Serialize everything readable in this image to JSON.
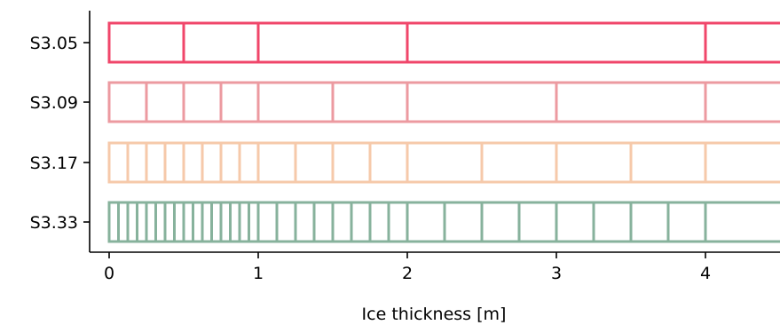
{
  "chart_data": {
    "type": "bar",
    "title": "",
    "xlabel": "Ice thickness [m]",
    "ylabel": "",
    "xlim": [
      -0.13,
      4.5
    ],
    "xticks": [
      0,
      1,
      2,
      3,
      4
    ],
    "xtick_labels": [
      "0",
      "1",
      "2",
      "3",
      "4"
    ],
    "grid": false,
    "legend": "none",
    "categories": [
      "S3.05",
      "S3.09",
      "S3.17",
      "S3.33"
    ],
    "series": [
      {
        "category": "S3.05",
        "color": "#f0466a",
        "boundaries": [
          0,
          0.5,
          1,
          2,
          4
        ]
      },
      {
        "category": "S3.09",
        "color": "#ec9aa0",
        "boundaries": [
          0,
          0.25,
          0.5,
          0.75,
          1,
          1.5,
          2,
          3,
          4
        ]
      },
      {
        "category": "S3.17",
        "color": "#f6c9aa",
        "boundaries": [
          0,
          0.125,
          0.25,
          0.375,
          0.5,
          0.625,
          0.75,
          0.875,
          1,
          1.25,
          1.5,
          1.75,
          2,
          2.5,
          3,
          3.5,
          4
        ]
      },
      {
        "category": "S3.33",
        "color": "#87b29c",
        "boundaries": [
          0,
          0.0625,
          0.125,
          0.1875,
          0.25,
          0.3125,
          0.375,
          0.4375,
          0.5,
          0.5625,
          0.625,
          0.6875,
          0.75,
          0.8125,
          0.875,
          0.9375,
          1,
          1.125,
          1.25,
          1.375,
          1.5,
          1.625,
          1.75,
          1.875,
          2,
          2.25,
          2.5,
          2.75,
          3,
          3.25,
          3.5,
          3.75,
          4
        ]
      }
    ]
  }
}
